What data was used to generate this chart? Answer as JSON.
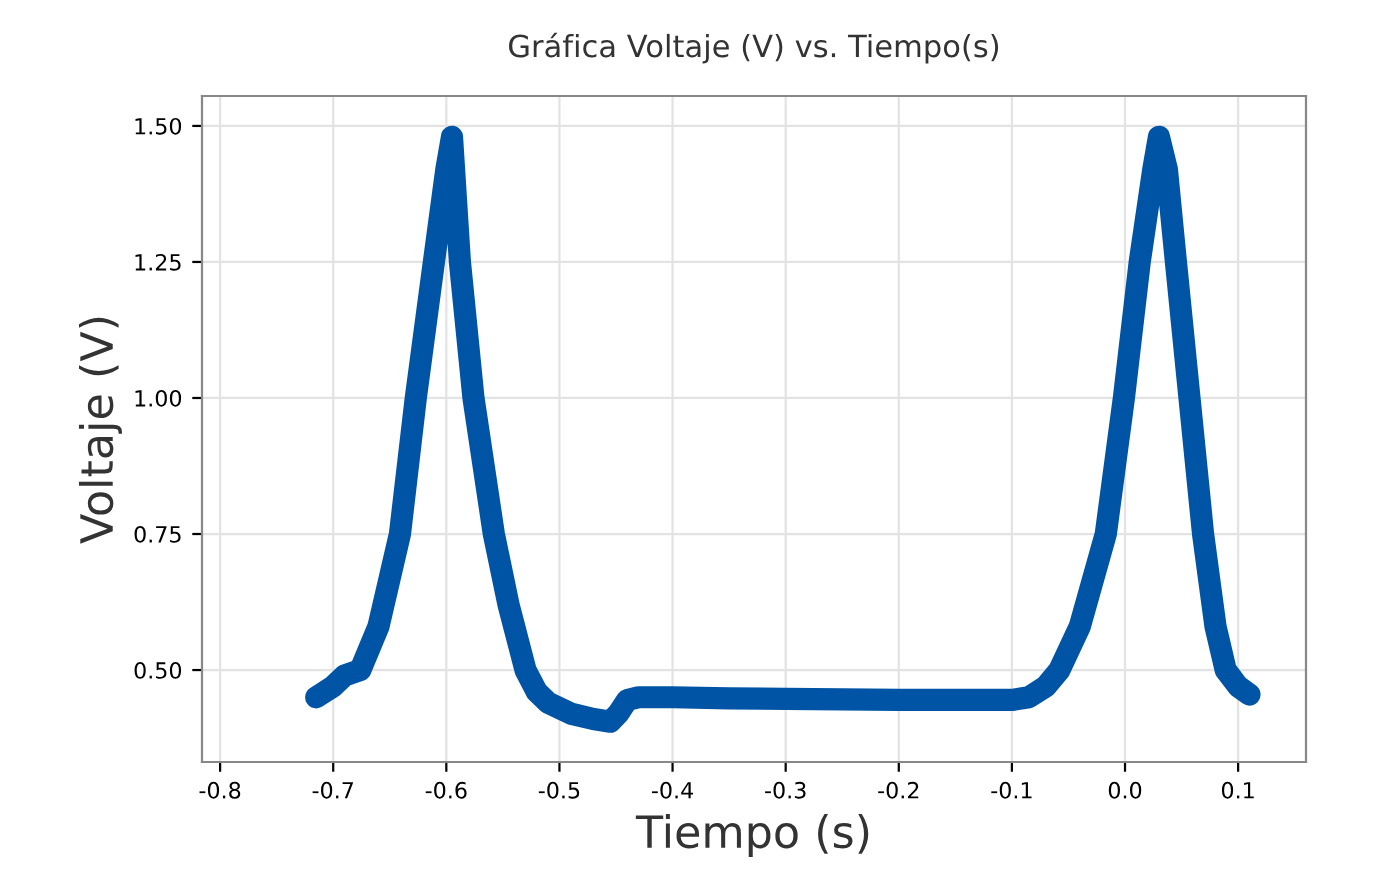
{
  "chart_data": {
    "type": "line",
    "title": "Gráfica Voltaje (V) vs. Tiempo(s)",
    "xlabel": "Tiempo (s)",
    "ylabel": "Voltaje (V)",
    "series": [
      {
        "color": "#0054a6",
        "x": [
          -0.715,
          -0.7,
          -0.69,
          -0.676,
          -0.66,
          -0.641,
          -0.627,
          -0.611,
          -0.6,
          -0.595,
          -0.588,
          -0.576,
          -0.558,
          -0.545,
          -0.53,
          -0.52,
          -0.51,
          -0.49,
          -0.47,
          -0.455,
          -0.448,
          -0.44,
          -0.43,
          -0.4,
          -0.35,
          -0.3,
          -0.25,
          -0.2,
          -0.15,
          -0.1,
          -0.085,
          -0.07,
          -0.058,
          -0.04,
          -0.017,
          -0.001,
          0.013,
          0.025,
          0.03,
          0.037,
          0.045,
          0.057,
          0.069,
          0.08,
          0.089,
          0.1,
          0.11
        ],
        "values": [
          0.45,
          0.47,
          0.49,
          0.5,
          0.58,
          0.75,
          1.0,
          1.25,
          1.42,
          1.48,
          1.25,
          1.0,
          0.75,
          0.62,
          0.5,
          0.46,
          0.44,
          0.42,
          0.41,
          0.405,
          0.42,
          0.445,
          0.45,
          0.45,
          0.448,
          0.447,
          0.446,
          0.445,
          0.445,
          0.445,
          0.45,
          0.47,
          0.5,
          0.58,
          0.75,
          1.0,
          1.25,
          1.42,
          1.48,
          1.42,
          1.25,
          1.0,
          0.75,
          0.58,
          0.5,
          0.47,
          0.455
        ]
      }
    ],
    "xlim": [
      -0.816,
      0.16
    ],
    "ylim": [
      0.331,
      1.555
    ],
    "xticks": [
      -0.8,
      -0.7,
      -0.6,
      -0.5,
      -0.4,
      -0.3,
      -0.2,
      -0.1,
      {
        "value": 0,
        "label": "0.0"
      },
      0.1
    ],
    "yticks": [
      {
        "value": 0.5,
        "label": "0.50"
      },
      {
        "value": 0.75,
        "label": "0.75"
      },
      {
        "value": 1.0,
        "label": "1.00"
      },
      {
        "value": 1.25,
        "label": "1.25"
      },
      {
        "value": 1.5,
        "label": "1.50"
      }
    ],
    "grid": true,
    "line_style": "solid"
  }
}
